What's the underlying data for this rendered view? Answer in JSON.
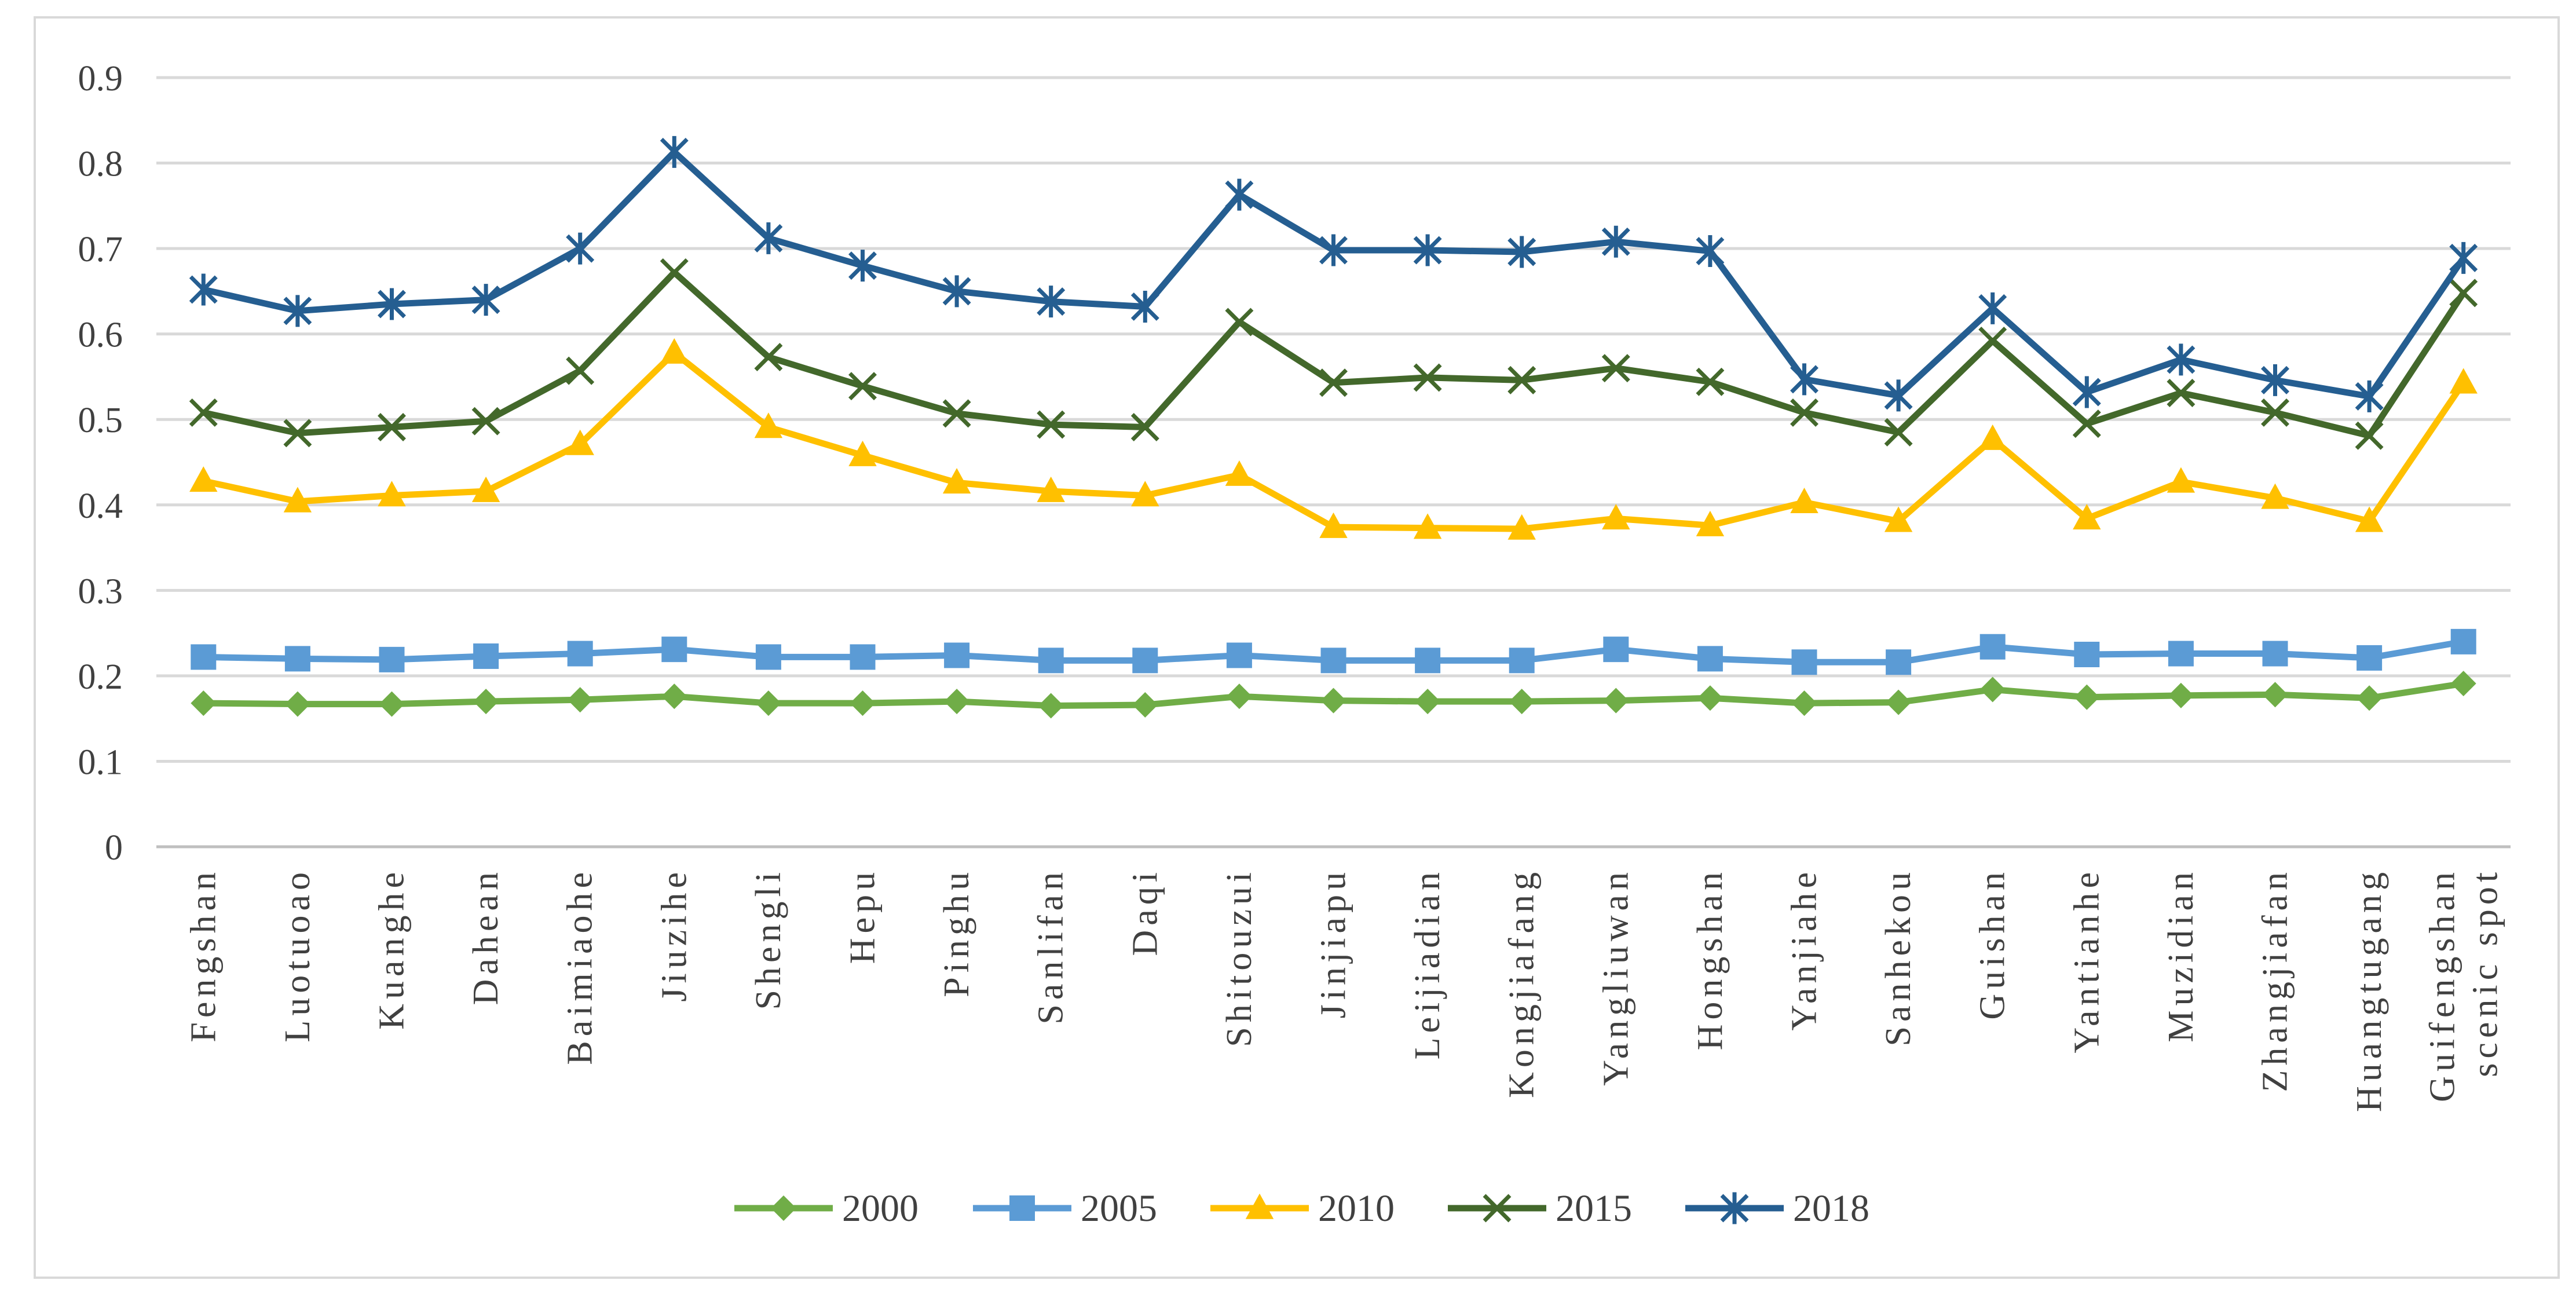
{
  "chart_data": {
    "type": "line",
    "title": "",
    "xlabel": "",
    "ylabel": "",
    "ylim": [
      0,
      0.9
    ],
    "yticks": [
      "0",
      "0.1",
      "0.2",
      "0.3",
      "0.4",
      "0.5",
      "0.6",
      "0.7",
      "0.8",
      "0.9"
    ],
    "grid": true,
    "legend_position": "bottom",
    "categories": [
      "Fengshan",
      "Luotuoao",
      "Kuanghe",
      "Dahean",
      "Baimiaohe",
      "Jiuzihe",
      "Shengli",
      "Hepu",
      "Pinghu",
      "Sanlifan",
      "Daqi",
      "Shitouzui",
      "Jinjiapu",
      "Leijiadian",
      "Kongjiafang",
      "Yangliuwan",
      "Hongshan",
      "Yanjiahe",
      "Sanhekou",
      "Guishan",
      "Yantianhe",
      "Muzidian",
      "Zhangjiafan",
      "Huangtugang",
      "Guifengshan scenic spot"
    ],
    "series": [
      {
        "name": "2000",
        "color": "#70ad47",
        "marker": "diamond",
        "values": [
          0.168,
          0.167,
          0.167,
          0.17,
          0.172,
          0.176,
          0.168,
          0.168,
          0.17,
          0.165,
          0.166,
          0.176,
          0.171,
          0.17,
          0.17,
          0.171,
          0.174,
          0.168,
          0.169,
          0.184,
          0.175,
          0.177,
          0.178,
          0.174,
          0.191
        ]
      },
      {
        "name": "2005",
        "color": "#5b9bd5",
        "marker": "square",
        "values": [
          0.222,
          0.22,
          0.219,
          0.223,
          0.226,
          0.231,
          0.222,
          0.222,
          0.224,
          0.218,
          0.218,
          0.224,
          0.218,
          0.218,
          0.218,
          0.231,
          0.22,
          0.216,
          0.216,
          0.234,
          0.225,
          0.226,
          0.226,
          0.221,
          0.24
        ]
      },
      {
        "name": "2010",
        "color": "#ffc000",
        "marker": "triangle",
        "values": [
          0.428,
          0.404,
          0.411,
          0.416,
          0.471,
          0.578,
          0.491,
          0.458,
          0.426,
          0.416,
          0.411,
          0.435,
          0.374,
          0.373,
          0.372,
          0.384,
          0.376,
          0.403,
          0.381,
          0.477,
          0.384,
          0.427,
          0.408,
          0.381,
          0.543
        ]
      },
      {
        "name": "2015",
        "color": "#43682b",
        "marker": "x",
        "values": [
          0.508,
          0.484,
          0.491,
          0.498,
          0.557,
          0.672,
          0.573,
          0.539,
          0.507,
          0.494,
          0.491,
          0.614,
          0.543,
          0.549,
          0.546,
          0.56,
          0.544,
          0.508,
          0.485,
          0.592,
          0.495,
          0.531,
          0.508,
          0.481,
          0.648
        ]
      },
      {
        "name": "2018",
        "color": "#255e91",
        "marker": "asterisk",
        "values": [
          0.652,
          0.627,
          0.635,
          0.64,
          0.7,
          0.813,
          0.712,
          0.68,
          0.65,
          0.638,
          0.632,
          0.763,
          0.698,
          0.698,
          0.696,
          0.708,
          0.697,
          0.547,
          0.528,
          0.63,
          0.532,
          0.57,
          0.546,
          0.527,
          0.689
        ]
      }
    ]
  }
}
